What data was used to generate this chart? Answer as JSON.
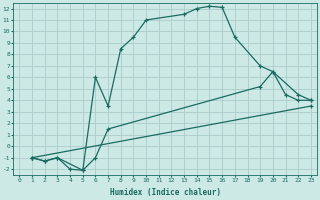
{
  "background_color": "#cce9e6",
  "grid_color": "#aaccca",
  "line_color": "#1a6b60",
  "xlabel": "Humidex (Indice chaleur)",
  "xlim": [
    -0.5,
    23.5
  ],
  "ylim": [
    -2.5,
    12.5
  ],
  "xticks": [
    0,
    1,
    2,
    3,
    4,
    5,
    6,
    7,
    8,
    9,
    10,
    11,
    12,
    13,
    14,
    15,
    16,
    17,
    18,
    19,
    20,
    21,
    22,
    23
  ],
  "yticks": [
    -2,
    -1,
    0,
    1,
    2,
    3,
    4,
    5,
    6,
    7,
    8,
    9,
    10,
    11,
    12
  ],
  "line1_x": [
    1,
    2,
    3,
    5,
    6,
    7,
    8,
    9,
    10,
    13,
    14,
    15,
    16,
    17,
    19,
    20,
    21,
    22,
    23
  ],
  "line1_y": [
    -1.0,
    -1.3,
    -1.0,
    -2.1,
    6.0,
    3.5,
    8.5,
    9.5,
    11.0,
    11.5,
    12.0,
    12.2,
    12.1,
    9.5,
    7.0,
    6.5,
    4.5,
    4.0,
    4.0
  ],
  "line2_x": [
    1,
    2,
    3,
    4,
    5,
    6,
    7,
    19,
    20,
    22,
    23
  ],
  "line2_y": [
    -1.0,
    -1.3,
    -1.0,
    -2.0,
    -2.1,
    -1.0,
    1.5,
    5.2,
    6.5,
    4.5,
    4.0
  ],
  "line3_x": [
    1,
    23
  ],
  "line3_y": [
    -1.0,
    3.5
  ]
}
